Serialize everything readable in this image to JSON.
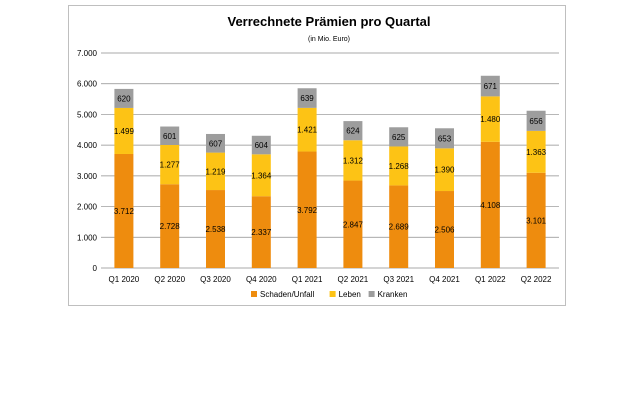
{
  "chart_data": {
    "type": "bar",
    "stacked": true,
    "title": "Verrechnete Prämien pro Quartal",
    "subtitle": "(in Mio. Euro)",
    "categories": [
      "Q1 2020",
      "Q2 2020",
      "Q3 2020",
      "Q4 2020",
      "Q1 2021",
      "Q2 2021",
      "Q3 2021",
      "Q4 2021",
      "Q1 2022",
      "Q2 2022"
    ],
    "series": [
      {
        "name": "Schaden/Unfall",
        "color": "#ee8c0e",
        "values": [
          3712,
          2728,
          2538,
          2337,
          3792,
          2847,
          2689,
          2506,
          4108,
          3101
        ],
        "labels": [
          "3.712",
          "2.728",
          "2.538",
          "2.337",
          "3.792",
          "2.847",
          "2.689",
          "2.506",
          "4.108",
          "3.101"
        ]
      },
      {
        "name": "Leben",
        "color": "#fdc315",
        "values": [
          1499,
          1277,
          1219,
          1364,
          1421,
          1312,
          1268,
          1390,
          1480,
          1363
        ],
        "labels": [
          "1.499",
          "1.277",
          "1.219",
          "1.364",
          "1.421",
          "1.312",
          "1.268",
          "1.390",
          "1.480",
          "1.363"
        ]
      },
      {
        "name": "Kranken",
        "color": "#9d9d9d",
        "values": [
          620,
          601,
          607,
          604,
          639,
          624,
          625,
          653,
          671,
          656
        ],
        "labels": [
          "620",
          "601",
          "607",
          "604",
          "639",
          "624",
          "625",
          "653",
          "671",
          "656"
        ]
      }
    ],
    "ylim": [
      0,
      7000
    ],
    "yticks": [
      0,
      1000,
      2000,
      3000,
      4000,
      5000,
      6000,
      7000
    ],
    "ytick_labels": [
      "0",
      "1.000",
      "2.000",
      "3.000",
      "4.000",
      "5.000",
      "6.000",
      "7.000"
    ],
    "grid": true,
    "legend_position": "bottom"
  }
}
